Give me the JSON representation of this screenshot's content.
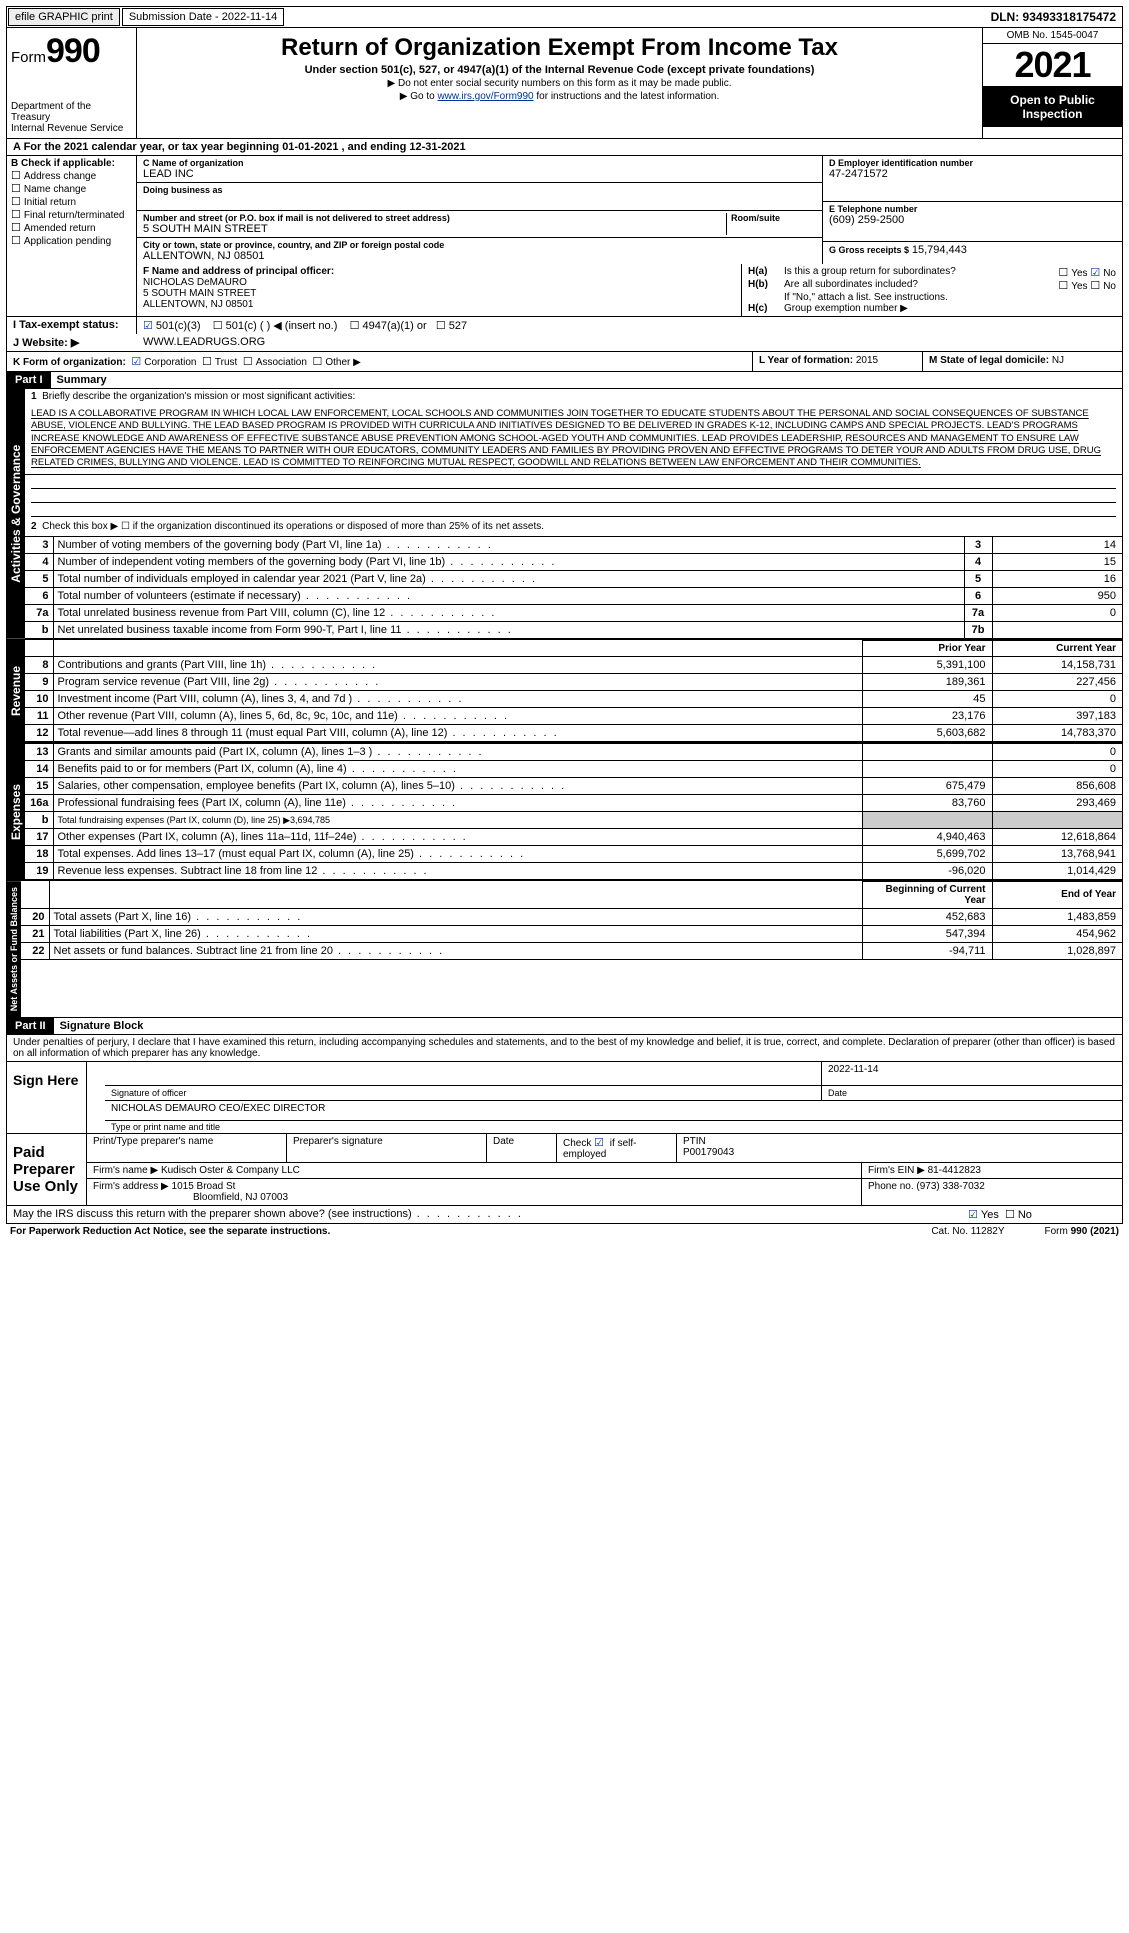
{
  "topbar": {
    "efile": "efile GRAPHIC print",
    "submission": "Submission Date - 2022-11-14",
    "dln": "DLN: 93493318175472"
  },
  "header": {
    "form_prefix": "Form",
    "form_number": "990",
    "dept": "Department of the Treasury",
    "irs": "Internal Revenue Service",
    "title": "Return of Organization Exempt From Income Tax",
    "subtitle": "Under section 501(c), 527, or 4947(a)(1) of the Internal Revenue Code (except private foundations)",
    "note1": "▶ Do not enter social security numbers on this form as it may be made public.",
    "note2_pre": "▶ Go to ",
    "note2_link": "www.irs.gov/Form990",
    "note2_post": " for instructions and the latest information.",
    "omb": "OMB No. 1545-0047",
    "year": "2021",
    "inspect": "Open to Public Inspection"
  },
  "row_a": "A For the 2021 calendar year, or tax year beginning 01-01-2021   , and ending 12-31-2021",
  "box_b": {
    "label": "B Check if applicable:",
    "items": [
      "Address change",
      "Name change",
      "Initial return",
      "Final return/terminated",
      "Amended return",
      "Application pending"
    ]
  },
  "box_c": {
    "name_lbl": "C Name of organization",
    "name": "LEAD INC",
    "dba_lbl": "Doing business as",
    "dba": "",
    "street_lbl": "Number and street (or P.O. box if mail is not delivered to street address)",
    "street": "5 SOUTH MAIN STREET",
    "suite_lbl": "Room/suite",
    "city_lbl": "City or town, state or province, country, and ZIP or foreign postal code",
    "city": "ALLENTOWN, NJ  08501"
  },
  "box_d": {
    "lbl": "D Employer identification number",
    "val": "47-2471572"
  },
  "box_e": {
    "lbl": "E Telephone number",
    "val": "(609) 259-2500"
  },
  "box_g": {
    "lbl": "G Gross receipts $",
    "val": "15,794,443"
  },
  "box_f": {
    "lbl": "F  Name and address of principal officer:",
    "name": "NICHOLAS DeMAURO",
    "street": "5 SOUTH MAIN STREET",
    "city": "ALLENTOWN, NJ  08501"
  },
  "box_h": {
    "a_lbl": "Is this a group return for subordinates?",
    "a_yes": "Yes",
    "a_no": "No",
    "b_lbl": "Are all subordinates included?",
    "b_yes": "Yes",
    "b_no": "No",
    "note": "If \"No,\" attach a list. See instructions.",
    "c_lbl": "Group exemption number ▶"
  },
  "box_i": {
    "lbl": "I  Tax-exempt status:",
    "o1": "501(c)(3)",
    "o2": "501(c) (  ) ◀ (insert no.)",
    "o3": "4947(a)(1) or",
    "o4": "527"
  },
  "box_j": {
    "lbl": "J  Website: ▶",
    "val": "WWW.LEADRUGS.ORG"
  },
  "box_k": {
    "lbl": "K Form of organization:",
    "o1": "Corporation",
    "o2": "Trust",
    "o3": "Association",
    "o4": "Other ▶"
  },
  "box_l": {
    "lbl": "L Year of formation:",
    "val": "2015"
  },
  "box_m": {
    "lbl": "M State of legal domicile:",
    "val": "NJ"
  },
  "part1": {
    "hdr": "Part I",
    "title": "Summary"
  },
  "mission_lbl": "Briefly describe the organization's mission or most significant activities:",
  "mission": "LEAD IS A COLLABORATIVE PROGRAM IN WHICH LOCAL LAW ENFORCEMENT, LOCAL SCHOOLS AND COMMUNITIES JOIN TOGETHER TO EDUCATE STUDENTS ABOUT THE PERSONAL AND SOCIAL CONSEQUENCES OF SUBSTANCE ABUSE, VIOLENCE AND BULLYING. THE LEAD BASED PROGRAM IS PROVIDED WITH CURRICULA AND INITIATIVES DESIGNED TO BE DELIVERED IN GRADES K-12, INCLUDING CAMPS AND SPECIAL PROJECTS. LEAD'S PROGRAMS INCREASE KNOWLEDGE AND AWARENESS OF EFFECTIVE SUBSTANCE ABUSE PREVENTION AMONG SCHOOL-AGED YOUTH AND COMMUNITIES. LEAD PROVIDES LEADERSHIP, RESOURCES AND MANAGEMENT TO ENSURE LAW ENFORCEMENT AGENCIES HAVE THE MEANS TO PARTNER WITH OUR EDUCATORS, COMMUNITY LEADERS AND FAMILIES BY PROVIDING PROVEN AND EFFECTIVE PROGRAMS TO DETER YOUR AND ADULTS FROM DRUG USE, DRUG RELATED CRIMES, BULLYING AND VIOLENCE. LEAD IS COMMITTED TO REINFORCING MUTUAL RESPECT, GOODWILL AND RELATIONS BETWEEN LAW ENFORCEMENT AND THEIR COMMUNITIES.",
  "line2": "Check this box ▶ ☐ if the organization discontinued its operations or disposed of more than 25% of its net assets.",
  "gov_lines": [
    {
      "n": "3",
      "t": "Number of voting members of the governing body (Part VI, line 1a)",
      "l": "3",
      "v": "14"
    },
    {
      "n": "4",
      "t": "Number of independent voting members of the governing body (Part VI, line 1b)",
      "l": "4",
      "v": "15"
    },
    {
      "n": "5",
      "t": "Total number of individuals employed in calendar year 2021 (Part V, line 2a)",
      "l": "5",
      "v": "16"
    },
    {
      "n": "6",
      "t": "Total number of volunteers (estimate if necessary)",
      "l": "6",
      "v": "950"
    },
    {
      "n": "7a",
      "t": "Total unrelated business revenue from Part VIII, column (C), line 12",
      "l": "7a",
      "v": "0"
    },
    {
      "n": "b",
      "t": "Net unrelated business taxable income from Form 990-T, Part I, line 11",
      "l": "7b",
      "v": ""
    }
  ],
  "col_prior": "Prior Year",
  "col_current": "Current Year",
  "rev_lines": [
    {
      "n": "8",
      "t": "Contributions and grants (Part VIII, line 1h)",
      "p": "5,391,100",
      "c": "14,158,731"
    },
    {
      "n": "9",
      "t": "Program service revenue (Part VIII, line 2g)",
      "p": "189,361",
      "c": "227,456"
    },
    {
      "n": "10",
      "t": "Investment income (Part VIII, column (A), lines 3, 4, and 7d )",
      "p": "45",
      "c": "0"
    },
    {
      "n": "11",
      "t": "Other revenue (Part VIII, column (A), lines 5, 6d, 8c, 9c, 10c, and 11e)",
      "p": "23,176",
      "c": "397,183"
    },
    {
      "n": "12",
      "t": "Total revenue—add lines 8 through 11 (must equal Part VIII, column (A), line 12)",
      "p": "5,603,682",
      "c": "14,783,370"
    }
  ],
  "exp_lines": [
    {
      "n": "13",
      "t": "Grants and similar amounts paid (Part IX, column (A), lines 1–3 )",
      "p": "",
      "c": "0"
    },
    {
      "n": "14",
      "t": "Benefits paid to or for members (Part IX, column (A), line 4)",
      "p": "",
      "c": "0"
    },
    {
      "n": "15",
      "t": "Salaries, other compensation, employee benefits (Part IX, column (A), lines 5–10)",
      "p": "675,479",
      "c": "856,608"
    },
    {
      "n": "16a",
      "t": "Professional fundraising fees (Part IX, column (A), line 11e)",
      "p": "83,760",
      "c": "293,469"
    },
    {
      "n": "b",
      "t": "Total fundraising expenses (Part IX, column (D), line 25) ▶3,694,785",
      "p": "SHADE",
      "c": "SHADE"
    },
    {
      "n": "17",
      "t": "Other expenses (Part IX, column (A), lines 11a–11d, 11f–24e)",
      "p": "4,940,463",
      "c": "12,618,864"
    },
    {
      "n": "18",
      "t": "Total expenses. Add lines 13–17 (must equal Part IX, column (A), line 25)",
      "p": "5,699,702",
      "c": "13,768,941"
    },
    {
      "n": "19",
      "t": "Revenue less expenses. Subtract line 18 from line 12",
      "p": "-96,020",
      "c": "1,014,429"
    }
  ],
  "col_begin": "Beginning of Current Year",
  "col_end": "End of Year",
  "na_lines": [
    {
      "n": "20",
      "t": "Total assets (Part X, line 16)",
      "p": "452,683",
      "c": "1,483,859"
    },
    {
      "n": "21",
      "t": "Total liabilities (Part X, line 26)",
      "p": "547,394",
      "c": "454,962"
    },
    {
      "n": "22",
      "t": "Net assets or fund balances. Subtract line 21 from line 20",
      "p": "-94,711",
      "c": "1,028,897"
    }
  ],
  "part2": {
    "hdr": "Part II",
    "title": "Signature Block"
  },
  "penalties": "Under penalties of perjury, I declare that I have examined this return, including accompanying schedules and statements, and to the best of my knowledge and belief, it is true, correct, and complete. Declaration of preparer (other than officer) is based on all information of which preparer has any knowledge.",
  "sign": {
    "here": "Sign Here",
    "sig_lbl": "Signature of officer",
    "date_lbl": "Date",
    "date": "2022-11-14",
    "name": "NICHOLAS DEMAURO  CEO/EXEC DIRECTOR",
    "name_lbl": "Type or print name and title"
  },
  "preparer": {
    "hdr": "Paid Preparer Use Only",
    "col1": "Print/Type preparer's name",
    "col2": "Preparer's signature",
    "col3": "Date",
    "col4_lbl": "Check",
    "col4_txt": "if self-employed",
    "ptin_lbl": "PTIN",
    "ptin": "P00179043",
    "firm_lbl": "Firm's name    ▶",
    "firm": "Kudisch Oster & Company LLC",
    "ein_lbl": "Firm's EIN ▶",
    "ein": "81-4412823",
    "addr_lbl": "Firm's address ▶",
    "addr1": "1015 Broad St",
    "addr2": "Bloomfield, NJ  07003",
    "phone_lbl": "Phone no.",
    "phone": "(973) 338-7032"
  },
  "discuss": {
    "txt": "May the IRS discuss this return with the preparer shown above? (see instructions)",
    "yes": "Yes",
    "no": "No"
  },
  "footer": {
    "l": "For Paperwork Reduction Act Notice, see the separate instructions.",
    "m": "Cat. No. 11282Y",
    "r": "Form 990 (2021)"
  },
  "tabs": {
    "ag": "Activities & Governance",
    "rev": "Revenue",
    "exp": "Expenses",
    "na": "Net Assets or Fund Balances"
  }
}
